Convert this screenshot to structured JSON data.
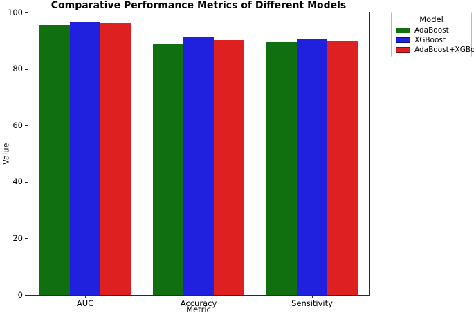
{
  "chart_data": {
    "type": "bar",
    "title": "Comparative Performance Metrics of Different Models",
    "xlabel": "Metric",
    "ylabel": "Value",
    "categories": [
      "AUC",
      "Accuracy",
      "Sensitivity"
    ],
    "series": [
      {
        "name": "AdaBoost",
        "color": "#107010",
        "values": [
          95.6,
          88.7,
          89.7
        ]
      },
      {
        "name": "XGBoost",
        "color": "#2020df",
        "values": [
          96.5,
          91.1,
          90.6
        ]
      },
      {
        "name": "AdaBoost+XGBoost",
        "color": "#df2020",
        "values": [
          96.4,
          90.1,
          90.0
        ]
      }
    ],
    "ylim": [
      0,
      100
    ],
    "yticks": [
      0,
      20,
      40,
      60,
      80,
      100
    ],
    "legend": {
      "title": "Model",
      "position": "outside-upper-right"
    },
    "grid": false,
    "group_width_fraction": 0.8,
    "spine_color": "#2b2b2b"
  }
}
